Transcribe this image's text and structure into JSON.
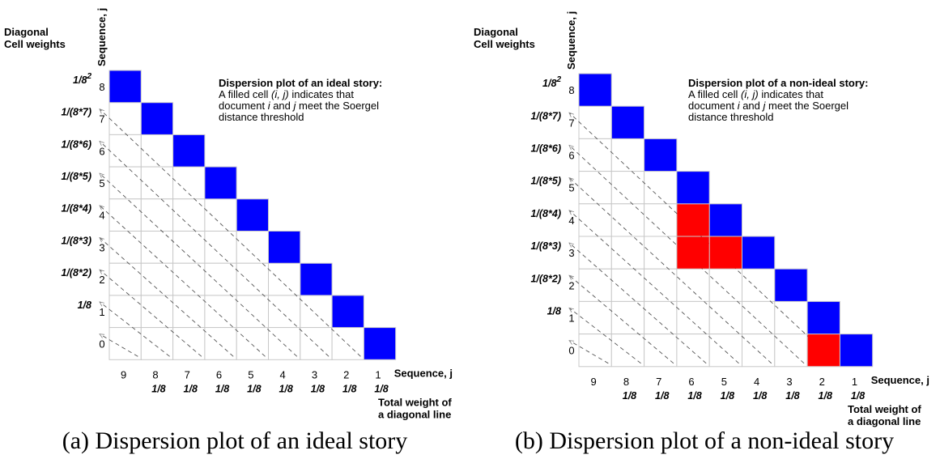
{
  "panels": [
    {
      "id": "a",
      "y_axis_label": "Sequence, j",
      "weights_title_line1": "Diagonal",
      "weights_title_line2": "Cell weights",
      "x_axis_label": "Sequence, j",
      "total_weight_line1": "Total weight of",
      "total_weight_line2": "a diagonal line",
      "row_labels": [
        "8",
        "7",
        "6",
        "5",
        "4",
        "3",
        "2",
        "1",
        "0"
      ],
      "row_weights": [
        "1/8",
        "1/(8*7)",
        "1/(8*6)",
        "1/(8*5)",
        "1/(8*4)",
        "1/(8*3)",
        "1/(8*2)",
        "1/8",
        ""
      ],
      "col_labels": [
        "9",
        "8",
        "7",
        "6",
        "5",
        "4",
        "3",
        "2",
        "1"
      ],
      "col_weights": [
        "",
        "1/8",
        "1/8",
        "1/8",
        "1/8",
        "1/8",
        "1/8",
        "1/8",
        "1/8"
      ],
      "desc_title": "Dispersion plot of an ideal story:",
      "desc_l1_a": "A filled cell ",
      "desc_l1_b": "(i, j)",
      "desc_l1_c": " indicates that",
      "desc_l2_a": "document ",
      "desc_l2_b": "i",
      "desc_l2_c": " and ",
      "desc_l2_d": "j",
      "desc_l2_e": " meet the Soergel",
      "desc_l3": "distance threshold",
      "caption": "(a) Dispersion plot of an ideal story",
      "blue_cells": [
        [
          0,
          0
        ],
        [
          1,
          1
        ],
        [
          2,
          2
        ],
        [
          3,
          3
        ],
        [
          4,
          4
        ],
        [
          5,
          5
        ],
        [
          6,
          6
        ],
        [
          7,
          7
        ],
        [
          8,
          8
        ]
      ],
      "red_cells": []
    },
    {
      "id": "b",
      "y_axis_label": "Sequence, j",
      "weights_title_line1": "Diagonal",
      "weights_title_line2": "Cell weights",
      "x_axis_label": "Sequence, j",
      "total_weight_line1": "Total weight of",
      "total_weight_line2": "a diagonal line",
      "row_labels": [
        "8",
        "7",
        "6",
        "5",
        "4",
        "3",
        "2",
        "1",
        "0"
      ],
      "row_weights": [
        "1/8",
        "1/(8*7)",
        "1/(8*6)",
        "1/(8*5)",
        "1/(8*4)",
        "1/(8*3)",
        "1/(8*2)",
        "1/8",
        ""
      ],
      "col_labels": [
        "9",
        "8",
        "7",
        "6",
        "5",
        "4",
        "3",
        "2",
        "1"
      ],
      "col_weights": [
        "",
        "1/8",
        "1/8",
        "1/8",
        "1/8",
        "1/8",
        "1/8",
        "1/8",
        "1/8"
      ],
      "desc_title": "Dispersion plot of a non-ideal story:",
      "desc_l1_a": "A filled cell ",
      "desc_l1_b": "(i, j)",
      "desc_l1_c": " indicates that",
      "desc_l2_a": "document ",
      "desc_l2_b": "i",
      "desc_l2_c": " and ",
      "desc_l2_d": "j",
      "desc_l2_e": " meet the Soergel",
      "desc_l3": "distance threshold",
      "caption": "(b) Dispersion plot of a non-ideal story",
      "blue_cells": [
        [
          0,
          0
        ],
        [
          1,
          1
        ],
        [
          2,
          2
        ],
        [
          3,
          3
        ],
        [
          4,
          4
        ],
        [
          5,
          5
        ],
        [
          6,
          6
        ],
        [
          7,
          7
        ],
        [
          8,
          8
        ]
      ],
      "red_cells": [
        [
          4,
          3
        ],
        [
          5,
          3
        ],
        [
          5,
          4
        ],
        [
          8,
          7
        ]
      ]
    }
  ],
  "colors": {
    "blue": "#0000ff",
    "red": "#ff0000",
    "grid": "#c8c8c8",
    "dash": "#555555",
    "arrow": "#888888"
  },
  "superscript_two": "2"
}
